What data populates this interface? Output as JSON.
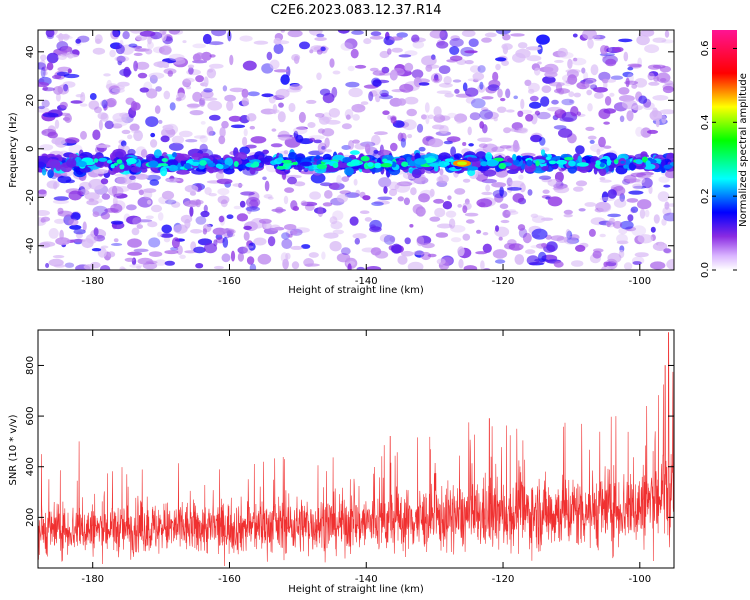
{
  "title": "C2E6.2023.083.12.37.R14",
  "colors": {
    "background": "#ffffff",
    "snr_line": "#f03030"
  },
  "chart_data": [
    {
      "type": "heatmap",
      "xlabel": "Height of straight line (km)",
      "ylabel": "Frequency (Hz)",
      "xlim": [
        -188,
        -95
      ],
      "ylim": [
        -50,
        49
      ],
      "xticks": [
        -180,
        -160,
        -140,
        -120,
        -100
      ],
      "yticks": [
        -40,
        -20,
        0,
        20,
        40
      ],
      "colorbar": {
        "label": "Normalized spectral amplitude",
        "range": [
          0.0,
          0.65
        ],
        "ticks": [
          0.0,
          0.2,
          0.4,
          0.6
        ],
        "colormap": [
          "#ffffff",
          "#8a2be2",
          "#0000ff",
          "#00ffff",
          "#00ff00",
          "#ffff00",
          "#ff0000",
          "#ff1493"
        ]
      },
      "ridge": {
        "frequency_hz": -6,
        "amplitude_peak": 0.45,
        "peak_height_km": -126
      }
    },
    {
      "type": "line",
      "xlabel": "Height of straight line (km)",
      "ylabel": "SNR (10 * v/v)",
      "xlim": [
        -188,
        -95
      ],
      "ylim": [
        0,
        940
      ],
      "xticks": [
        -180,
        -160,
        -140,
        -120,
        -100
      ],
      "yticks": [
        200,
        400,
        600,
        800
      ],
      "trend": {
        "x": [
          -188,
          -160,
          -140,
          -120,
          -100,
          -96
        ],
        "y": [
          150,
          160,
          180,
          210,
          240,
          300
        ]
      },
      "peaks": [
        {
          "x": -95.8,
          "y": 930
        },
        {
          "x": -96.3,
          "y": 800
        },
        {
          "x": -95.2,
          "y": 650
        },
        {
          "x": -99.0,
          "y": 640
        },
        {
          "x": -103.5,
          "y": 600
        },
        {
          "x": -122.0,
          "y": 590
        },
        {
          "x": -125.0,
          "y": 575
        },
        {
          "x": -118.0,
          "y": 550
        },
        {
          "x": -136.5,
          "y": 520
        },
        {
          "x": -182.0,
          "y": 500
        },
        {
          "x": -187.5,
          "y": 450
        },
        {
          "x": -155.0,
          "y": 420
        },
        {
          "x": -152.0,
          "y": 430
        },
        {
          "x": -175.0,
          "y": 370
        }
      ]
    }
  ]
}
